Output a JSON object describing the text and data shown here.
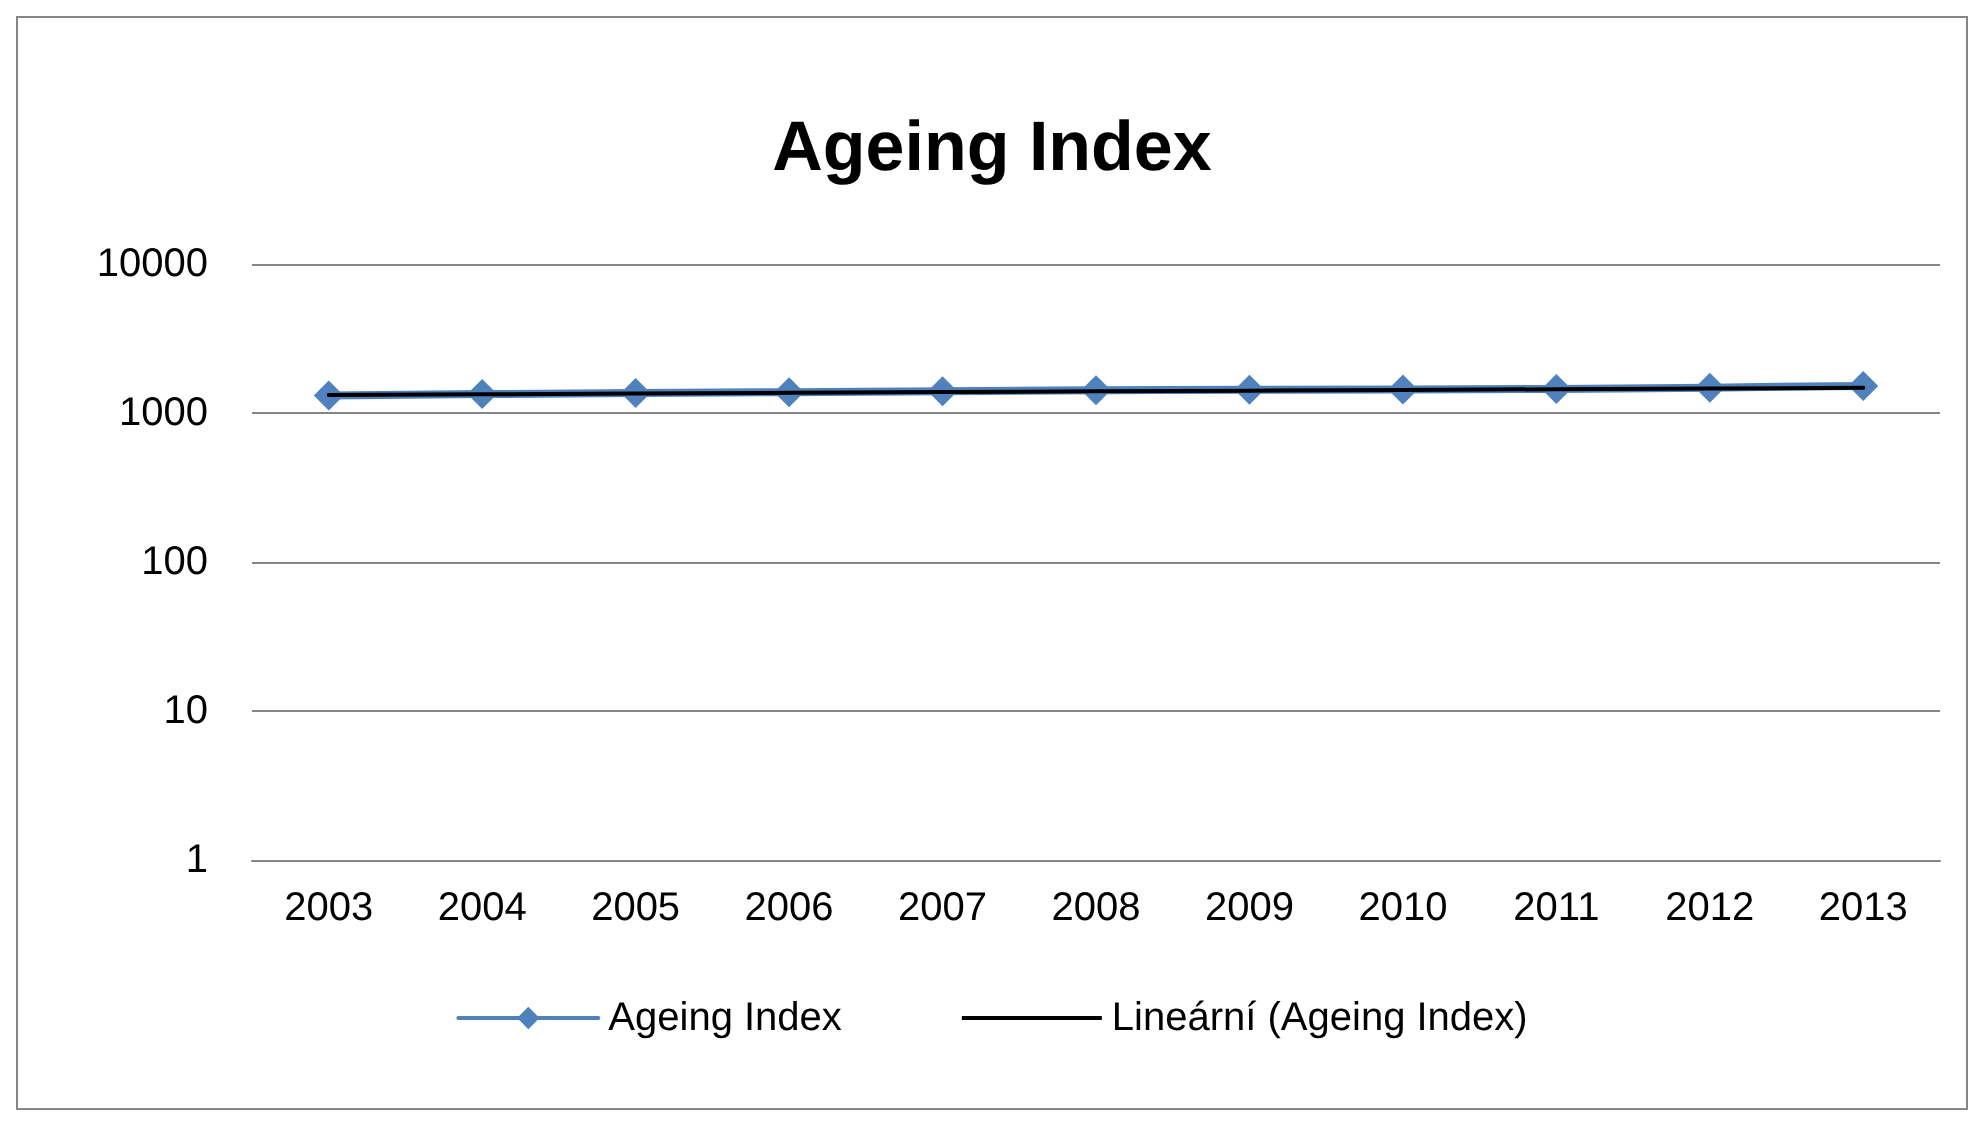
{
  "chart_data": {
    "type": "line",
    "title": "Ageing Index",
    "categories": [
      "2003",
      "2004",
      "2005",
      "2006",
      "2007",
      "2008",
      "2009",
      "2010",
      "2011",
      "2012",
      "2013"
    ],
    "series": [
      {
        "name": "Ageing Index",
        "color": "#4f81bd",
        "marker": "diamond",
        "values": [
          1310,
          1340,
          1360,
          1380,
          1400,
          1420,
          1430,
          1440,
          1450,
          1480,
          1520
        ]
      },
      {
        "name": "Lineární (Ageing Index)",
        "color": "#000000",
        "marker": "none",
        "values": [
          1320,
          1335,
          1351,
          1366,
          1382,
          1397,
          1413,
          1428,
          1444,
          1459,
          1475
        ]
      }
    ],
    "log": true,
    "ylim": [
      1,
      10000
    ],
    "yticks": [
      1,
      10,
      100,
      1000,
      10000
    ],
    "grid": "y",
    "legend": "bottom"
  }
}
